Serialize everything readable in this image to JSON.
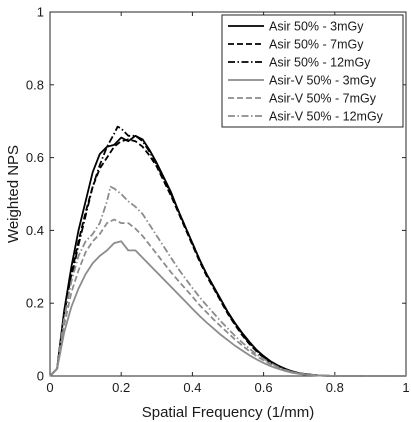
{
  "chart_data": {
    "type": "line",
    "xlabel": "Spatial Frequency (1/mm)",
    "ylabel": "Weighted NPS",
    "xlim": [
      0,
      1
    ],
    "ylim": [
      0,
      1
    ],
    "x_ticks": [
      "0",
      "0.2",
      "0.4",
      "0.6",
      "0.8",
      "1"
    ],
    "y_ticks": [
      "0",
      "0.2",
      "0.4",
      "0.6",
      "0.8",
      "1"
    ],
    "grid": false,
    "legend_position": "top-right",
    "series": [
      {
        "name": "Asir 50% - 3mGy",
        "color": "#000000",
        "dash": "solid",
        "points": [
          [
            0,
            0
          ],
          [
            0.02,
            0.02
          ],
          [
            0.04,
            0.18
          ],
          [
            0.06,
            0.3
          ],
          [
            0.08,
            0.4
          ],
          [
            0.1,
            0.48
          ],
          [
            0.12,
            0.56
          ],
          [
            0.14,
            0.61
          ],
          [
            0.16,
            0.63
          ],
          [
            0.18,
            0.635
          ],
          [
            0.2,
            0.655
          ],
          [
            0.22,
            0.645
          ],
          [
            0.24,
            0.66
          ],
          [
            0.26,
            0.65
          ],
          [
            0.28,
            0.62
          ],
          [
            0.3,
            0.585
          ],
          [
            0.32,
            0.545
          ],
          [
            0.34,
            0.505
          ],
          [
            0.36,
            0.455
          ],
          [
            0.38,
            0.41
          ],
          [
            0.4,
            0.365
          ],
          [
            0.42,
            0.32
          ],
          [
            0.44,
            0.28
          ],
          [
            0.46,
            0.245
          ],
          [
            0.48,
            0.21
          ],
          [
            0.5,
            0.175
          ],
          [
            0.52,
            0.145
          ],
          [
            0.54,
            0.118
          ],
          [
            0.56,
            0.094
          ],
          [
            0.58,
            0.072
          ],
          [
            0.6,
            0.055
          ],
          [
            0.62,
            0.04
          ],
          [
            0.64,
            0.029
          ],
          [
            0.66,
            0.02
          ],
          [
            0.68,
            0.013
          ],
          [
            0.7,
            0.008
          ],
          [
            0.72,
            0.005
          ],
          [
            0.74,
            0.003
          ],
          [
            0.76,
            0.001
          ],
          [
            0.8,
            0
          ],
          [
            1,
            0
          ]
        ]
      },
      {
        "name": "Asir 50% - 7mGy",
        "color": "#000000",
        "dash": "dashed",
        "points": [
          [
            0,
            0
          ],
          [
            0.02,
            0.02
          ],
          [
            0.04,
            0.17
          ],
          [
            0.06,
            0.28
          ],
          [
            0.08,
            0.37
          ],
          [
            0.1,
            0.45
          ],
          [
            0.12,
            0.52
          ],
          [
            0.14,
            0.57
          ],
          [
            0.16,
            0.6
          ],
          [
            0.18,
            0.63
          ],
          [
            0.2,
            0.645
          ],
          [
            0.22,
            0.65
          ],
          [
            0.24,
            0.645
          ],
          [
            0.26,
            0.63
          ],
          [
            0.28,
            0.605
          ],
          [
            0.3,
            0.575
          ],
          [
            0.32,
            0.535
          ],
          [
            0.34,
            0.495
          ],
          [
            0.36,
            0.45
          ],
          [
            0.38,
            0.405
          ],
          [
            0.4,
            0.36
          ],
          [
            0.42,
            0.315
          ],
          [
            0.44,
            0.275
          ],
          [
            0.46,
            0.24
          ],
          [
            0.48,
            0.205
          ],
          [
            0.5,
            0.17
          ],
          [
            0.52,
            0.14
          ],
          [
            0.54,
            0.112
          ],
          [
            0.56,
            0.088
          ],
          [
            0.58,
            0.068
          ],
          [
            0.6,
            0.05
          ],
          [
            0.62,
            0.037
          ],
          [
            0.64,
            0.026
          ],
          [
            0.66,
            0.018
          ],
          [
            0.68,
            0.012
          ],
          [
            0.7,
            0.007
          ],
          [
            0.72,
            0.004
          ],
          [
            0.76,
            0.001
          ],
          [
            0.8,
            0
          ],
          [
            1,
            0
          ]
        ]
      },
      {
        "name": "Asir 50% - 12mGy",
        "color": "#000000",
        "dash": "dashdot",
        "points": [
          [
            0,
            0
          ],
          [
            0.02,
            0.02
          ],
          [
            0.04,
            0.16
          ],
          [
            0.06,
            0.27
          ],
          [
            0.08,
            0.36
          ],
          [
            0.1,
            0.44
          ],
          [
            0.12,
            0.52
          ],
          [
            0.14,
            0.58
          ],
          [
            0.16,
            0.63
          ],
          [
            0.18,
            0.665
          ],
          [
            0.19,
            0.685
          ],
          [
            0.2,
            0.68
          ],
          [
            0.22,
            0.66
          ],
          [
            0.24,
            0.66
          ],
          [
            0.26,
            0.645
          ],
          [
            0.28,
            0.615
          ],
          [
            0.3,
            0.58
          ],
          [
            0.32,
            0.54
          ],
          [
            0.34,
            0.5
          ],
          [
            0.36,
            0.455
          ],
          [
            0.38,
            0.41
          ],
          [
            0.4,
            0.365
          ],
          [
            0.42,
            0.32
          ],
          [
            0.44,
            0.28
          ],
          [
            0.46,
            0.243
          ],
          [
            0.48,
            0.208
          ],
          [
            0.5,
            0.173
          ],
          [
            0.52,
            0.143
          ],
          [
            0.54,
            0.115
          ],
          [
            0.56,
            0.09
          ],
          [
            0.58,
            0.07
          ],
          [
            0.6,
            0.052
          ],
          [
            0.62,
            0.038
          ],
          [
            0.64,
            0.027
          ],
          [
            0.66,
            0.019
          ],
          [
            0.68,
            0.012
          ],
          [
            0.7,
            0.007
          ],
          [
            0.72,
            0.004
          ],
          [
            0.76,
            0.001
          ],
          [
            0.8,
            0
          ],
          [
            1,
            0
          ]
        ]
      },
      {
        "name": "Asir-V 50% - 3mGy",
        "color": "#8c8c8c",
        "dash": "solid",
        "points": [
          [
            0,
            0
          ],
          [
            0.02,
            0.02
          ],
          [
            0.04,
            0.12
          ],
          [
            0.06,
            0.19
          ],
          [
            0.08,
            0.24
          ],
          [
            0.1,
            0.28
          ],
          [
            0.12,
            0.31
          ],
          [
            0.14,
            0.33
          ],
          [
            0.16,
            0.345
          ],
          [
            0.18,
            0.365
          ],
          [
            0.2,
            0.37
          ],
          [
            0.22,
            0.345
          ],
          [
            0.24,
            0.345
          ],
          [
            0.26,
            0.325
          ],
          [
            0.28,
            0.305
          ],
          [
            0.3,
            0.285
          ],
          [
            0.32,
            0.265
          ],
          [
            0.34,
            0.245
          ],
          [
            0.36,
            0.225
          ],
          [
            0.38,
            0.205
          ],
          [
            0.4,
            0.185
          ],
          [
            0.42,
            0.165
          ],
          [
            0.44,
            0.147
          ],
          [
            0.46,
            0.13
          ],
          [
            0.48,
            0.113
          ],
          [
            0.5,
            0.098
          ],
          [
            0.52,
            0.083
          ],
          [
            0.54,
            0.07
          ],
          [
            0.56,
            0.057
          ],
          [
            0.58,
            0.046
          ],
          [
            0.6,
            0.036
          ],
          [
            0.62,
            0.027
          ],
          [
            0.64,
            0.02
          ],
          [
            0.66,
            0.014
          ],
          [
            0.68,
            0.009
          ],
          [
            0.7,
            0.006
          ],
          [
            0.72,
            0.003
          ],
          [
            0.76,
            0.001
          ],
          [
            0.8,
            0
          ],
          [
            1,
            0
          ]
        ]
      },
      {
        "name": "Asir-V 50% - 7mGy",
        "color": "#8c8c8c",
        "dash": "dashed",
        "points": [
          [
            0,
            0
          ],
          [
            0.02,
            0.02
          ],
          [
            0.04,
            0.14
          ],
          [
            0.06,
            0.23
          ],
          [
            0.08,
            0.29
          ],
          [
            0.1,
            0.34
          ],
          [
            0.12,
            0.37
          ],
          [
            0.14,
            0.39
          ],
          [
            0.16,
            0.42
          ],
          [
            0.18,
            0.43
          ],
          [
            0.2,
            0.42
          ],
          [
            0.22,
            0.42
          ],
          [
            0.24,
            0.405
          ],
          [
            0.26,
            0.385
          ],
          [
            0.28,
            0.36
          ],
          [
            0.3,
            0.335
          ],
          [
            0.32,
            0.31
          ],
          [
            0.34,
            0.285
          ],
          [
            0.36,
            0.262
          ],
          [
            0.38,
            0.24
          ],
          [
            0.4,
            0.218
          ],
          [
            0.42,
            0.195
          ],
          [
            0.44,
            0.175
          ],
          [
            0.46,
            0.155
          ],
          [
            0.48,
            0.136
          ],
          [
            0.5,
            0.118
          ],
          [
            0.52,
            0.1
          ],
          [
            0.54,
            0.084
          ],
          [
            0.56,
            0.068
          ],
          [
            0.58,
            0.055
          ],
          [
            0.6,
            0.043
          ],
          [
            0.62,
            0.032
          ],
          [
            0.64,
            0.023
          ],
          [
            0.66,
            0.016
          ],
          [
            0.68,
            0.011
          ],
          [
            0.7,
            0.007
          ],
          [
            0.72,
            0.004
          ],
          [
            0.76,
            0.001
          ],
          [
            0.8,
            0
          ],
          [
            1,
            0
          ]
        ]
      },
      {
        "name": "Asir-V 50% - 12mGy",
        "color": "#8c8c8c",
        "dash": "dashdot",
        "points": [
          [
            0,
            0
          ],
          [
            0.02,
            0.02
          ],
          [
            0.04,
            0.16
          ],
          [
            0.06,
            0.26
          ],
          [
            0.08,
            0.33
          ],
          [
            0.1,
            0.37
          ],
          [
            0.12,
            0.39
          ],
          [
            0.14,
            0.42
          ],
          [
            0.16,
            0.48
          ],
          [
            0.17,
            0.52
          ],
          [
            0.18,
            0.515
          ],
          [
            0.2,
            0.5
          ],
          [
            0.22,
            0.48
          ],
          [
            0.24,
            0.465
          ],
          [
            0.26,
            0.445
          ],
          [
            0.28,
            0.415
          ],
          [
            0.3,
            0.385
          ],
          [
            0.32,
            0.355
          ],
          [
            0.34,
            0.325
          ],
          [
            0.36,
            0.295
          ],
          [
            0.38,
            0.268
          ],
          [
            0.4,
            0.242
          ],
          [
            0.42,
            0.217
          ],
          [
            0.44,
            0.194
          ],
          [
            0.46,
            0.172
          ],
          [
            0.48,
            0.15
          ],
          [
            0.5,
            0.13
          ],
          [
            0.52,
            0.11
          ],
          [
            0.54,
            0.092
          ],
          [
            0.56,
            0.075
          ],
          [
            0.58,
            0.06
          ],
          [
            0.6,
            0.047
          ],
          [
            0.62,
            0.035
          ],
          [
            0.64,
            0.025
          ],
          [
            0.66,
            0.017
          ],
          [
            0.68,
            0.011
          ],
          [
            0.7,
            0.007
          ],
          [
            0.72,
            0.004
          ],
          [
            0.76,
            0.001
          ],
          [
            0.8,
            0
          ],
          [
            1,
            0
          ]
        ]
      }
    ]
  }
}
